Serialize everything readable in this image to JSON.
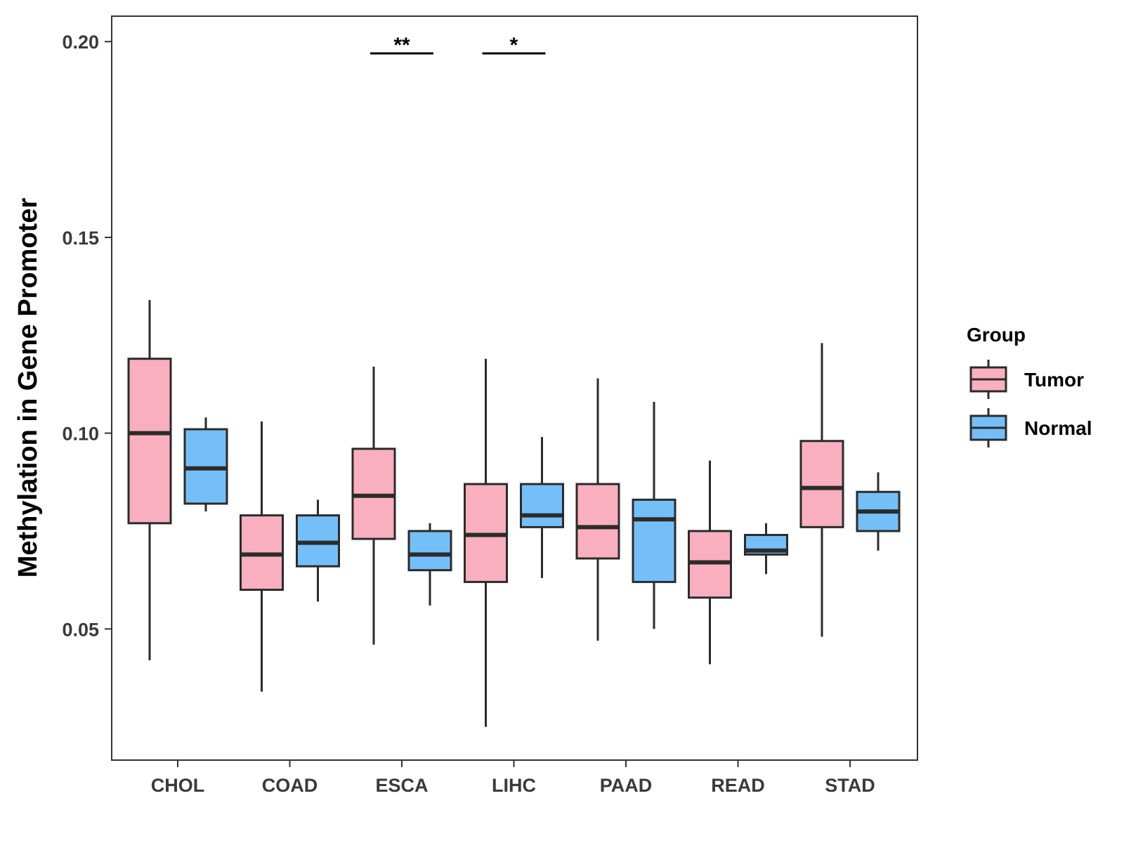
{
  "chart_data": {
    "type": "boxplot",
    "title": "",
    "xlabel": "",
    "ylabel": "Methylation in Gene Promoter",
    "ylim": [
      0.0165,
      0.2065
    ],
    "yticks": [
      0.05,
      0.1,
      0.15,
      0.2
    ],
    "ytick_labels": [
      "0.05",
      "0.10",
      "0.15",
      "0.20"
    ],
    "categories": [
      "CHOL",
      "COAD",
      "ESCA",
      "LIHC",
      "PAAD",
      "READ",
      "STAD"
    ],
    "grid": false,
    "legend": {
      "title": "Group",
      "position": "right"
    },
    "series": [
      {
        "name": "Tumor",
        "color": "#FAAFC1",
        "boxes": [
          {
            "min": 0.042,
            "q1": 0.077,
            "median": 0.1,
            "q3": 0.119,
            "max": 0.134
          },
          {
            "min": 0.034,
            "q1": 0.06,
            "median": 0.069,
            "q3": 0.079,
            "max": 0.103
          },
          {
            "min": 0.046,
            "q1": 0.073,
            "median": 0.084,
            "q3": 0.096,
            "max": 0.117
          },
          {
            "min": 0.025,
            "q1": 0.062,
            "median": 0.074,
            "q3": 0.087,
            "max": 0.119
          },
          {
            "min": 0.047,
            "q1": 0.068,
            "median": 0.076,
            "q3": 0.087,
            "max": 0.114
          },
          {
            "min": 0.041,
            "q1": 0.058,
            "median": 0.067,
            "q3": 0.075,
            "max": 0.093
          },
          {
            "min": 0.048,
            "q1": 0.076,
            "median": 0.086,
            "q3": 0.098,
            "max": 0.123
          }
        ]
      },
      {
        "name": "Normal",
        "color": "#75BFF9",
        "boxes": [
          {
            "min": 0.08,
            "q1": 0.082,
            "median": 0.091,
            "q3": 0.101,
            "max": 0.104
          },
          {
            "min": 0.057,
            "q1": 0.066,
            "median": 0.072,
            "q3": 0.079,
            "max": 0.083
          },
          {
            "min": 0.056,
            "q1": 0.065,
            "median": 0.069,
            "q3": 0.075,
            "max": 0.077
          },
          {
            "min": 0.063,
            "q1": 0.076,
            "median": 0.079,
            "q3": 0.087,
            "max": 0.099
          },
          {
            "min": 0.05,
            "q1": 0.062,
            "median": 0.078,
            "q3": 0.083,
            "max": 0.108
          },
          {
            "min": 0.064,
            "q1": 0.069,
            "median": 0.07,
            "q3": 0.074,
            "max": 0.077
          },
          {
            "min": 0.07,
            "q1": 0.075,
            "median": 0.08,
            "q3": 0.085,
            "max": 0.09
          }
        ]
      }
    ],
    "annotations": [
      {
        "category": "ESCA",
        "label": "**",
        "y": 0.197
      },
      {
        "category": "LIHC",
        "label": "*",
        "y": 0.197
      }
    ]
  }
}
